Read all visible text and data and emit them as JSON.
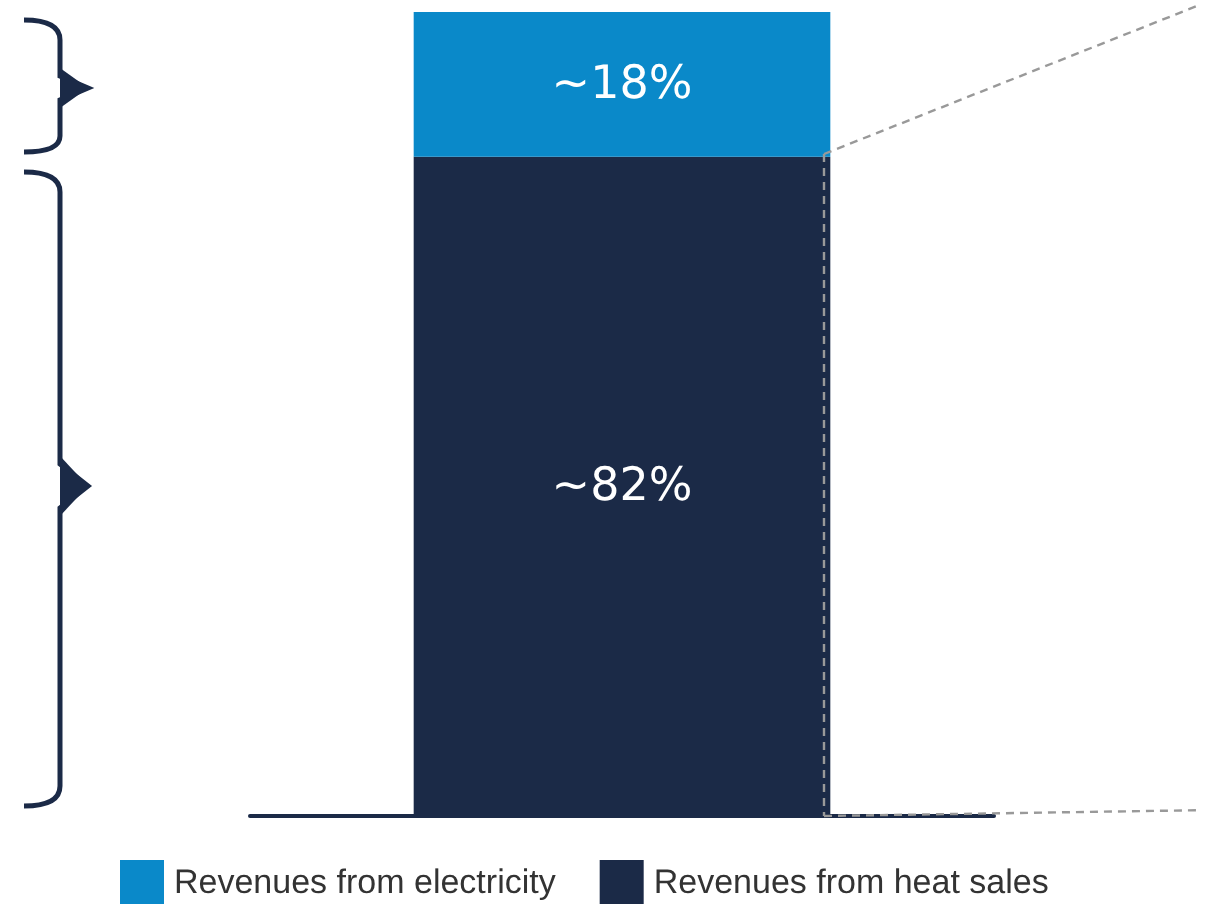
{
  "chart_data": {
    "type": "bar",
    "stacked": true,
    "categories": [
      null
    ],
    "legend": "bottom",
    "series": [
      {
        "name": "Revenues from heat sales",
        "color": "#1b2a47",
        "values": [
          82
        ],
        "value_labels": [
          "~82%"
        ]
      },
      {
        "name": "Revenues from electricity",
        "color": "#0a89c9",
        "values": [
          18
        ],
        "value_labels": [
          "~18%"
        ]
      }
    ]
  }
}
